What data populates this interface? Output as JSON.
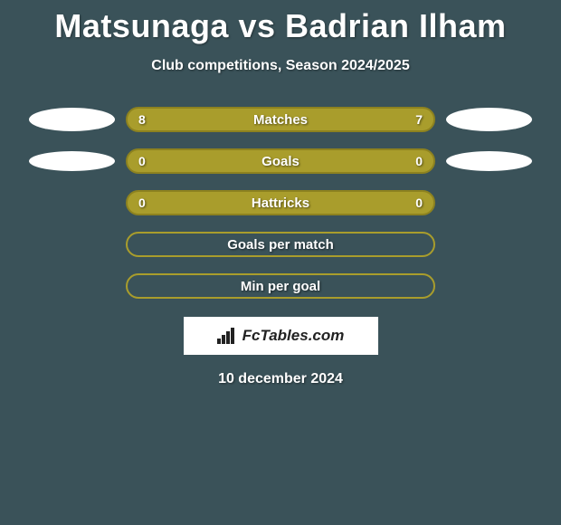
{
  "title": "Matsunaga vs Badrian Ilham",
  "subtitle": "Club competitions, Season 2024/2025",
  "date": "10 december 2024",
  "attribution": "FcTables.com",
  "colors": {
    "background": "#3a5259",
    "bar_fill": "#a99d2c",
    "bar_border_dark": "#8d821f",
    "bar_border_empty": "#a99d2c",
    "text": "#ffffff",
    "ellipse": "#ffffff"
  },
  "rows": [
    {
      "label": "Matches",
      "left": "8",
      "right": "7",
      "filled": true,
      "left_blob": "large",
      "right_blob": "large"
    },
    {
      "label": "Goals",
      "left": "0",
      "right": "0",
      "filled": true,
      "left_blob": "small",
      "right_blob": "small"
    },
    {
      "label": "Hattricks",
      "left": "0",
      "right": "0",
      "filled": true,
      "left_blob": "none",
      "right_blob": "none"
    },
    {
      "label": "Goals per match",
      "left": "",
      "right": "",
      "filled": false,
      "left_blob": "none",
      "right_blob": "none"
    },
    {
      "label": "Min per goal",
      "left": "",
      "right": "",
      "filled": false,
      "left_blob": "none",
      "right_blob": "none"
    }
  ]
}
